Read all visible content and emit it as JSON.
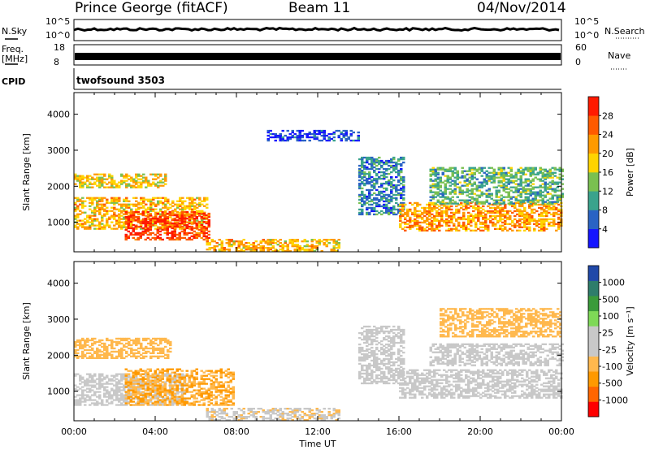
{
  "header": {
    "station": "Prince George (fitACF)",
    "beam": "Beam 11",
    "date": "04/Nov/2014"
  },
  "panels": {
    "nsky": {
      "label": "N.Sky",
      "ticks": [
        "10^5",
        "10^0"
      ]
    },
    "nsearch": {
      "label": "N.Search",
      "ticks": [
        "10^5",
        "10^0"
      ]
    },
    "freq": {
      "label_line1": "Freq.",
      "label_line2": "[MHz]",
      "ticks": [
        "18",
        "8"
      ]
    },
    "nave": {
      "label": "Nave",
      "ticks": [
        "60",
        "0"
      ]
    },
    "cpid": {
      "label": "CPID",
      "value": "twofsound 3503"
    }
  },
  "chart_data": [
    {
      "type": "heatmap",
      "title": "",
      "xlabel": "Time UT",
      "ylabel": "Slant Range [km]",
      "xlim": [
        "00:00",
        "24:00"
      ],
      "ylim": [
        180,
        4600
      ],
      "yticks": [
        "1000",
        "2000",
        "3000",
        "4000"
      ],
      "xticks": [
        "00:00",
        "04:00",
        "08:00",
        "12:00",
        "16:00",
        "20:00",
        "00:00"
      ],
      "colorbar": {
        "label": "Power [dB]",
        "ticks": [
          "28",
          "24",
          "20",
          "16",
          "12",
          "8",
          "4"
        ],
        "colors": [
          "#1515ff",
          "#2a63c4",
          "#3aa38c",
          "#7ac050",
          "#ffd400",
          "#ff9a00",
          "#ff5a00",
          "#ff1a00"
        ],
        "range": [
          0,
          32
        ]
      },
      "bands": [
        {
          "t0": 0.0,
          "t1": 6.5,
          "r0": 800,
          "r1": 1700,
          "level": 20
        },
        {
          "t0": 0.0,
          "t1": 4.5,
          "r0": 1950,
          "r1": 2350,
          "level": 18
        },
        {
          "t0": 2.5,
          "t1": 6.6,
          "r0": 500,
          "r1": 1300,
          "level": 28
        },
        {
          "t0": 6.5,
          "t1": 13.2,
          "r0": 180,
          "r1": 500,
          "level": 20
        },
        {
          "t0": 14.0,
          "t1": 16.2,
          "r0": 1200,
          "r1": 2800,
          "level": 8
        },
        {
          "t0": 16.0,
          "t1": 24.0,
          "r0": 750,
          "r1": 1550,
          "level": 22
        },
        {
          "t0": 17.5,
          "t1": 24.0,
          "r0": 1500,
          "r1": 2500,
          "level": 12
        },
        {
          "t0": 9.5,
          "t1": 14.0,
          "r0": 3250,
          "r1": 3550,
          "level": 4
        }
      ]
    },
    {
      "type": "heatmap",
      "title": "",
      "xlabel": "Time UT",
      "ylabel": "Slant Range [km]",
      "xlim": [
        "00:00",
        "24:00"
      ],
      "ylim": [
        180,
        4600
      ],
      "yticks": [
        "1000",
        "2000",
        "3000",
        "4000"
      ],
      "xticks": [
        "00:00",
        "04:00",
        "08:00",
        "12:00",
        "16:00",
        "20:00",
        "00:00"
      ],
      "colorbar": {
        "label": "Velocity [m s⁻¹]",
        "ticks": [
          "1000",
          "500",
          "100",
          "25",
          "-25",
          "-100",
          "-500",
          "-1000"
        ],
        "colors": [
          "#ff0000",
          "#ff6600",
          "#ff9900",
          "#ffb84d",
          "#c8c8c8",
          "#c8c8c8",
          "#7ed957",
          "#3a9b3a",
          "#2e7d6b",
          "#2048a8"
        ],
        "range": [
          -1000,
          1000
        ]
      },
      "bands": [
        {
          "t0": 0.0,
          "t1": 5.5,
          "r0": 600,
          "r1": 1500,
          "level": 0
        },
        {
          "t0": 0.0,
          "t1": 4.8,
          "r0": 1900,
          "r1": 2450,
          "level": -300
        },
        {
          "t0": 2.5,
          "t1": 7.8,
          "r0": 600,
          "r1": 1600,
          "level": -400
        },
        {
          "t0": 6.5,
          "t1": 13.0,
          "r0": 180,
          "r1": 500,
          "level": -150
        },
        {
          "t0": 14.0,
          "t1": 16.2,
          "r0": 1200,
          "r1": 2800,
          "level": 0
        },
        {
          "t0": 16.0,
          "t1": 24.0,
          "r0": 800,
          "r1": 1600,
          "level": 0
        },
        {
          "t0": 17.5,
          "t1": 24.0,
          "r0": 1700,
          "r1": 2300,
          "level": 0
        },
        {
          "t0": 18.0,
          "t1": 24.0,
          "r0": 2500,
          "r1": 3300,
          "level": -300
        }
      ]
    }
  ]
}
